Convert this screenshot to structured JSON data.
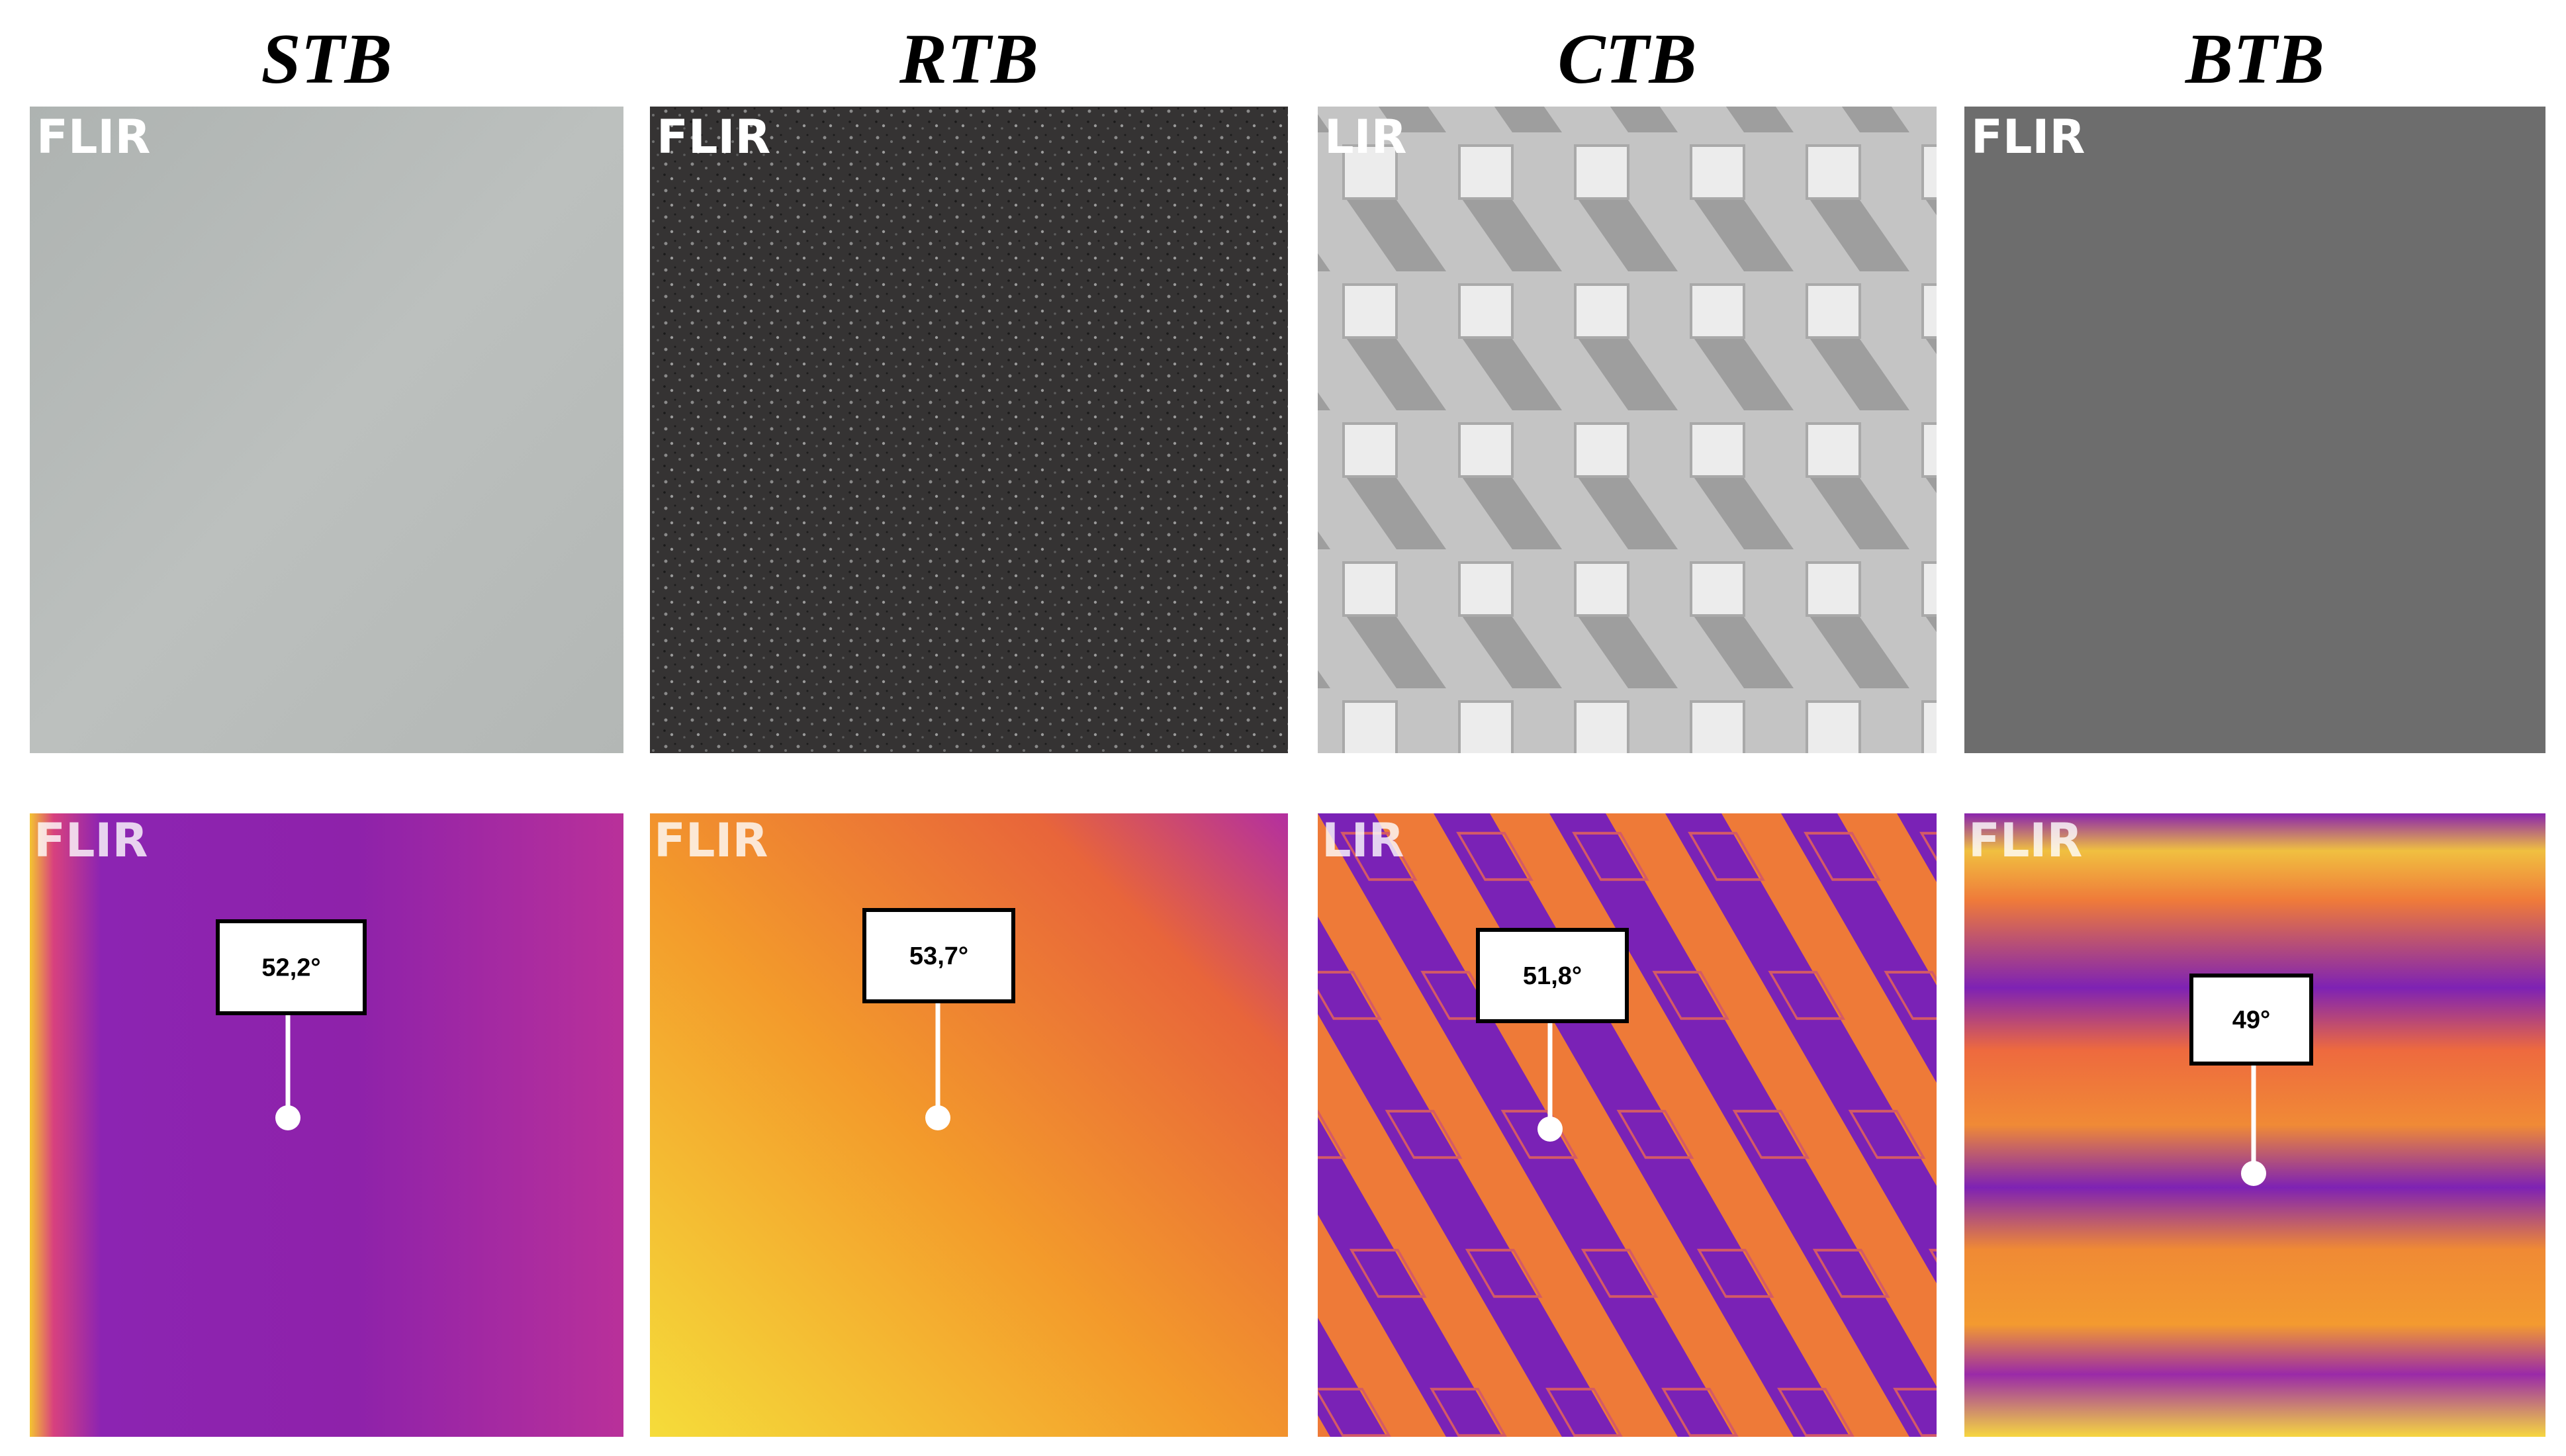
{
  "columns": [
    {
      "title": "STB",
      "photo_logo": "FLIR",
      "thermal_logo": "FLIR",
      "temperature": "52,2°"
    },
    {
      "title": "RTB",
      "photo_logo": "FLIR",
      "thermal_logo": "FLIR",
      "temperature": "53,7°"
    },
    {
      "title": "CTB",
      "photo_logo": "LIR",
      "thermal_logo": "LIR",
      "temperature": "51,8°"
    },
    {
      "title": "BTB",
      "photo_logo": "FLIR",
      "thermal_logo": "FLIR",
      "temperature": "49°"
    }
  ]
}
